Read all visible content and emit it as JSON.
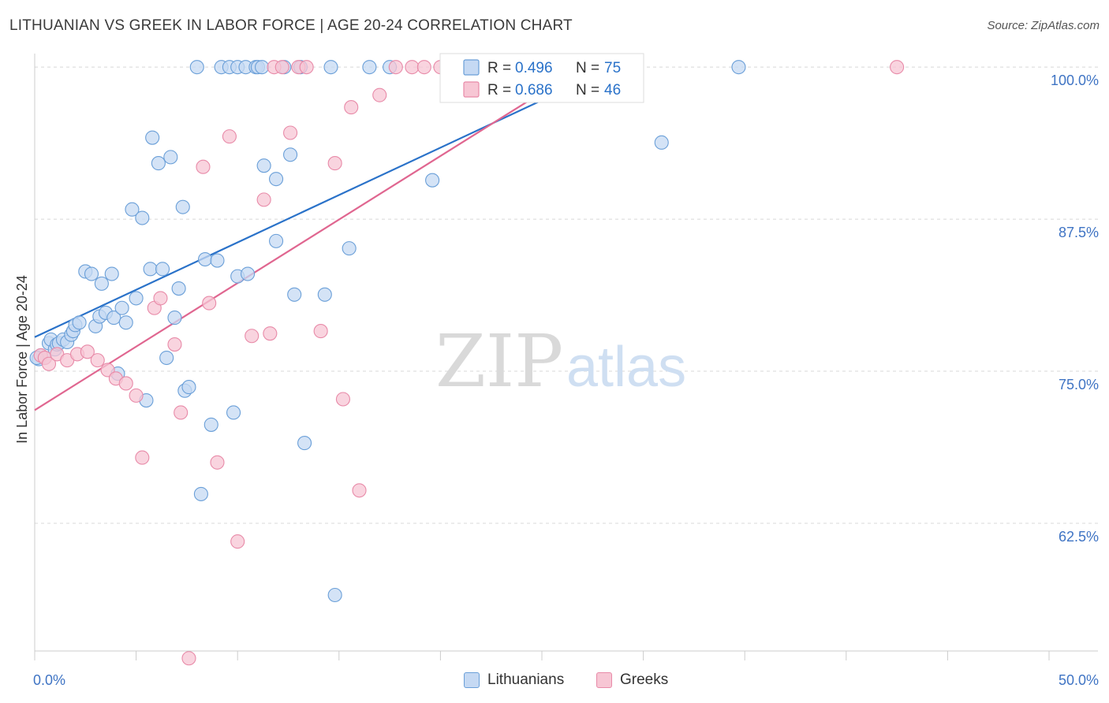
{
  "header": {
    "title": "LITHUANIAN VS GREEK IN LABOR FORCE | AGE 20-24 CORRELATION CHART",
    "source": "Source: ZipAtlas.com"
  },
  "watermark": {
    "zip": "ZIP",
    "atlas": "atlas"
  },
  "legend_stats": [
    {
      "r_label": "R =",
      "r_value": "0.496",
      "n_label": "N =",
      "n_value": "75"
    },
    {
      "r_label": "R =",
      "r_value": "0.686",
      "n_label": "N =",
      "n_value": "46"
    }
  ],
  "chart_data": {
    "type": "scatter",
    "title": "LITHUANIAN VS GREEK IN LABOR FORCE | AGE 20-24 CORRELATION CHART",
    "xlabel": "",
    "ylabel": "In Labor Force | Age 20-24",
    "xlim": [
      0,
      50
    ],
    "ylim": [
      52,
      101.5
    ],
    "x_tick_labels": [
      {
        "value": 0,
        "label": "0.0%"
      },
      {
        "value": 50,
        "label": "50.0%"
      }
    ],
    "y_tick_labels": [
      {
        "value": 100,
        "label": "100.0%"
      },
      {
        "value": 87.5,
        "label": "87.5%"
      },
      {
        "value": 75,
        "label": "75.0%"
      },
      {
        "value": 62.5,
        "label": "62.5%"
      }
    ],
    "grid": true,
    "legend_position": "top-center",
    "series": [
      {
        "name": "Lithuanians",
        "color": "#6a9fd8",
        "fill": "#c5d9f3",
        "line_color": "#2a72c9",
        "trend": {
          "x": [
            0,
            28.5
          ],
          "y": [
            77.8,
            100
          ]
        },
        "points": [
          [
            0.2,
            76.0
          ],
          [
            0.3,
            76.3
          ],
          [
            0.5,
            76.1
          ],
          [
            0.7,
            77.3
          ],
          [
            0.8,
            77.6
          ],
          [
            1.0,
            76.8
          ],
          [
            1.1,
            77.2
          ],
          [
            1.2,
            77.3
          ],
          [
            1.4,
            77.6
          ],
          [
            1.6,
            77.4
          ],
          [
            1.8,
            78.0
          ],
          [
            1.9,
            78.3
          ],
          [
            2.0,
            78.8
          ],
          [
            2.2,
            79.0
          ],
          [
            2.5,
            83.2
          ],
          [
            2.8,
            83.0
          ],
          [
            3.0,
            78.7
          ],
          [
            3.2,
            79.5
          ],
          [
            3.3,
            82.2
          ],
          [
            3.5,
            79.8
          ],
          [
            3.8,
            83.0
          ],
          [
            3.9,
            79.4
          ],
          [
            4.1,
            74.8
          ],
          [
            4.3,
            80.2
          ],
          [
            4.5,
            79.0
          ],
          [
            5.0,
            81.0
          ],
          [
            4.8,
            88.3
          ],
          [
            5.3,
            87.6
          ],
          [
            5.5,
            72.6
          ],
          [
            5.7,
            83.4
          ],
          [
            5.8,
            94.2
          ],
          [
            6.1,
            92.1
          ],
          [
            6.3,
            83.4
          ],
          [
            6.5,
            76.1
          ],
          [
            6.7,
            92.6
          ],
          [
            6.9,
            79.4
          ],
          [
            7.1,
            81.8
          ],
          [
            7.3,
            88.5
          ],
          [
            7.4,
            73.4
          ],
          [
            7.6,
            73.7
          ],
          [
            8.0,
            100
          ],
          [
            8.2,
            64.9
          ],
          [
            8.4,
            84.2
          ],
          [
            8.7,
            70.6
          ],
          [
            9.0,
            84.1
          ],
          [
            9.2,
            100
          ],
          [
            9.6,
            100
          ],
          [
            9.8,
            71.6
          ],
          [
            10.0,
            82.8
          ],
          [
            10.0,
            100
          ],
          [
            10.4,
            100
          ],
          [
            10.5,
            83.0
          ],
          [
            10.9,
            100
          ],
          [
            11.0,
            100
          ],
          [
            11.2,
            100
          ],
          [
            11.3,
            91.9
          ],
          [
            11.9,
            85.7
          ],
          [
            11.9,
            90.8
          ],
          [
            12.3,
            100
          ],
          [
            12.6,
            92.8
          ],
          [
            12.8,
            81.3
          ],
          [
            13.1,
            100
          ],
          [
            13.3,
            69.1
          ],
          [
            14.3,
            81.3
          ],
          [
            14.6,
            100
          ],
          [
            14.8,
            56.6
          ],
          [
            15.5,
            85.1
          ],
          [
            16.5,
            100
          ],
          [
            17.5,
            100
          ],
          [
            19.6,
            90.7
          ],
          [
            21.0,
            100
          ],
          [
            24.0,
            100
          ],
          [
            30.9,
            93.8
          ],
          [
            34.7,
            100
          ],
          [
            0.1,
            76.1
          ]
        ]
      },
      {
        "name": "Greeks",
        "color": "#e88aa8",
        "fill": "#f7c6d4",
        "line_color": "#e06690",
        "trend": {
          "x": [
            0,
            27.0
          ],
          "y": [
            71.8,
            100
          ]
        },
        "points": [
          [
            0.3,
            76.3
          ],
          [
            0.5,
            76.1
          ],
          [
            0.7,
            75.6
          ],
          [
            1.1,
            76.4
          ],
          [
            1.6,
            75.9
          ],
          [
            2.1,
            76.4
          ],
          [
            2.6,
            76.6
          ],
          [
            3.1,
            75.9
          ],
          [
            3.6,
            75.1
          ],
          [
            4.0,
            74.4
          ],
          [
            4.5,
            74.0
          ],
          [
            5.0,
            73.0
          ],
          [
            5.3,
            67.9
          ],
          [
            5.9,
            80.2
          ],
          [
            6.2,
            81.0
          ],
          [
            6.9,
            77.2
          ],
          [
            7.2,
            71.6
          ],
          [
            7.6,
            51.4
          ],
          [
            8.3,
            91.8
          ],
          [
            8.6,
            80.6
          ],
          [
            9.0,
            67.5
          ],
          [
            9.6,
            94.3
          ],
          [
            10.0,
            61.0
          ],
          [
            10.7,
            77.9
          ],
          [
            11.3,
            89.1
          ],
          [
            11.6,
            78.1
          ],
          [
            11.8,
            100
          ],
          [
            12.2,
            100
          ],
          [
            12.6,
            94.6
          ],
          [
            13.0,
            100
          ],
          [
            13.4,
            100
          ],
          [
            14.1,
            78.3
          ],
          [
            14.8,
            92.1
          ],
          [
            15.2,
            72.7
          ],
          [
            15.6,
            96.7
          ],
          [
            16.0,
            65.2
          ],
          [
            17.0,
            97.7
          ],
          [
            17.8,
            100
          ],
          [
            18.6,
            100
          ],
          [
            19.2,
            100
          ],
          [
            20.0,
            100
          ],
          [
            22.0,
            100
          ],
          [
            23.0,
            100
          ],
          [
            25.0,
            100
          ],
          [
            27.0,
            100
          ],
          [
            42.5,
            100
          ]
        ]
      }
    ]
  }
}
